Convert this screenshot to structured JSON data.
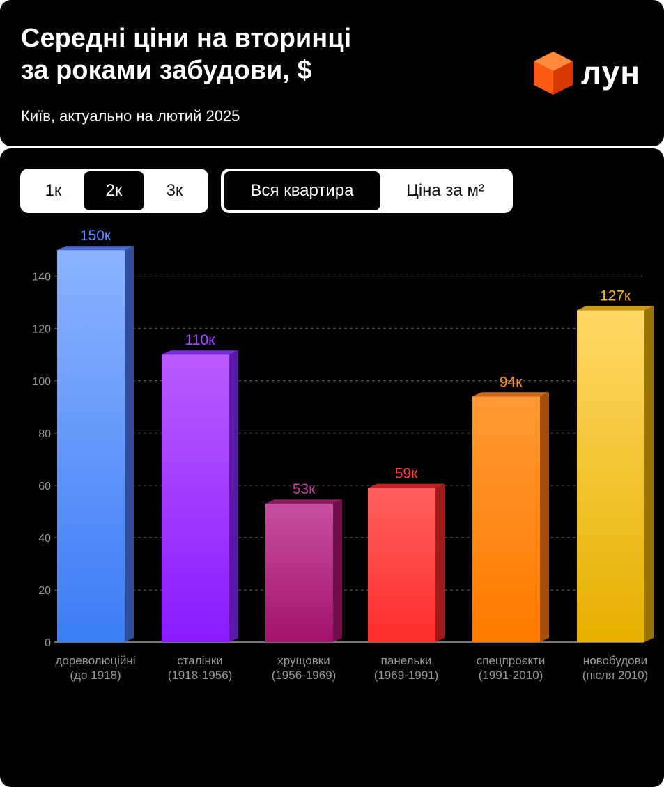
{
  "header": {
    "title": "Середні ціни на вторинці\nза роками забудови, $",
    "subtitle": "Київ, актуально на лютий 2025",
    "logo_text": "лун"
  },
  "controls": {
    "rooms": [
      {
        "label": "1к",
        "active": false
      },
      {
        "label": "2к",
        "active": true
      },
      {
        "label": "3к",
        "active": false
      }
    ],
    "modes": [
      {
        "label": "Вся квартира",
        "active": true
      },
      {
        "label": "Ціна за м²",
        "active": false
      }
    ]
  },
  "colors": {
    "background": "#000000",
    "grid": "#6b6b6b",
    "tick": "#9a9a9a",
    "logo_cube": "#ff5a14"
  },
  "chart_data": {
    "type": "bar",
    "title": "Середні ціни на вторинці за роками забудови, $",
    "categories": [
      [
        "дореволюційні",
        "(до 1918)"
      ],
      [
        "сталінки",
        "(1918-1956)"
      ],
      [
        "хрущовки",
        "(1956-1969)"
      ],
      [
        "панельки",
        "(1969-1991)"
      ],
      [
        "спецпроєкти",
        "(1991-2010)"
      ],
      [
        "новобудови",
        "(після 2010)"
      ]
    ],
    "values": [
      150,
      110,
      53,
      59,
      94,
      127
    ],
    "value_labels": [
      "150к",
      "110к",
      "53к",
      "59к",
      "94к",
      "127к"
    ],
    "ylim": [
      0,
      160
    ],
    "yticks": [
      0,
      20,
      40,
      60,
      80,
      100,
      120,
      140
    ],
    "grid": true,
    "bar_colors": [
      {
        "top": "#8db3ff",
        "bottom": "#3b7cf5",
        "side": "#2f4d9a",
        "cap": "#4a6ad0",
        "label": "#5b8cff"
      },
      {
        "top": "#b85cff",
        "bottom": "#8a1aff",
        "side": "#5a1ba6",
        "cap": "#7a2ad9",
        "label": "#a64dff"
      },
      {
        "top": "#c84fa0",
        "bottom": "#a0136b",
        "side": "#6e0f4c",
        "cap": "#8c1a60",
        "label": "#c2439a"
      },
      {
        "top": "#ff5f5f",
        "bottom": "#ff2d2d",
        "side": "#a01a1a",
        "cap": "#c42020",
        "label": "#ff4040"
      },
      {
        "top": "#ff9a35",
        "bottom": "#ff7a00",
        "side": "#a4500c",
        "cap": "#cf6a18",
        "label": "#ff9020"
      },
      {
        "top": "#ffd966",
        "bottom": "#e6b000",
        "side": "#9a7400",
        "cap": "#c99a1a",
        "label": "#f5b800"
      }
    ]
  }
}
